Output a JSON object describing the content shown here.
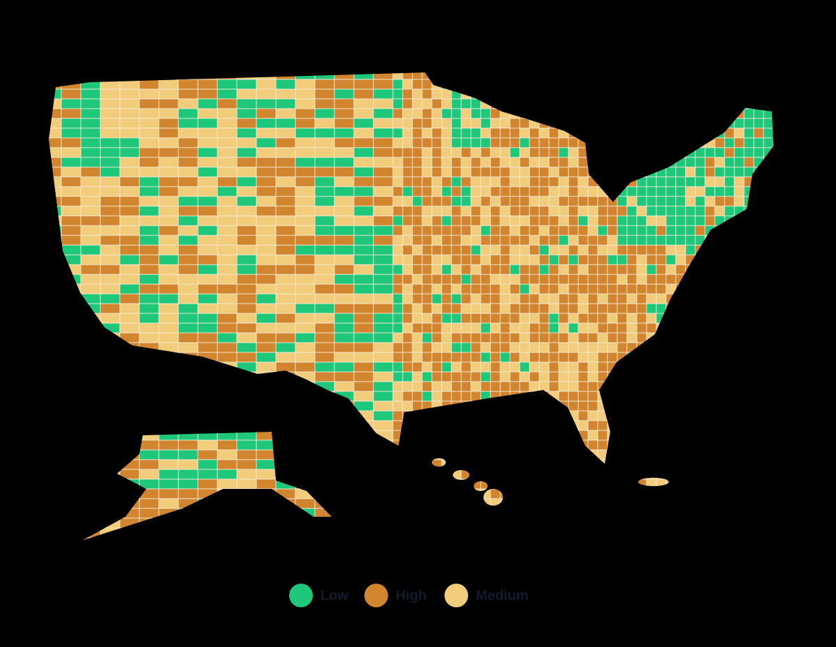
{
  "legend": {
    "items": [
      {
        "label": "Low",
        "color": "#1fc77b"
      },
      {
        "label": "High",
        "color": "#d1852f"
      },
      {
        "label": "Medium",
        "color": "#f1cc7a"
      }
    ]
  }
}
